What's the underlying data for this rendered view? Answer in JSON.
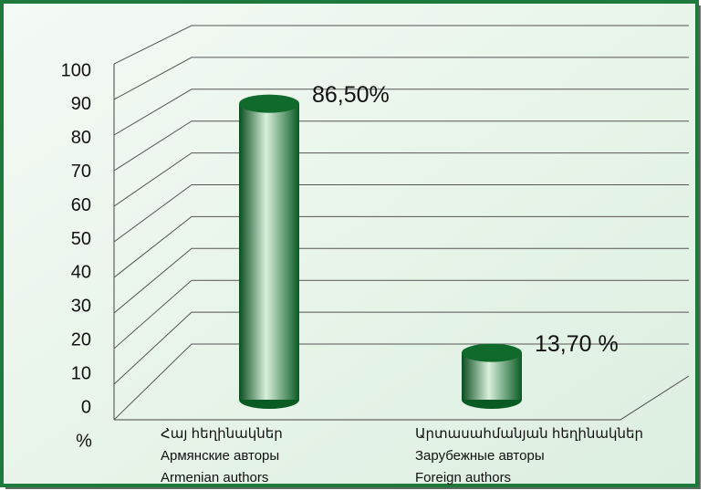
{
  "chart_data": {
    "type": "bar",
    "categories": [
      [
        "Հայ հեղինակներ",
        "Армянские авторы",
        "Armenian authors"
      ],
      [
        "Արտասահմանյան հեղինակներ",
        "Зарубежные  авторы",
        "Foreign authors"
      ]
    ],
    "values": [
      86.5,
      13.7
    ],
    "value_labels": [
      "86,50%",
      "13,70 %"
    ],
    "y_label": "%",
    "color": "#0f6a2c",
    "ylim": [
      0,
      100
    ],
    "yticks": [
      0,
      10,
      20,
      30,
      40,
      50,
      60,
      70,
      80,
      90,
      100
    ],
    "grid": true
  }
}
